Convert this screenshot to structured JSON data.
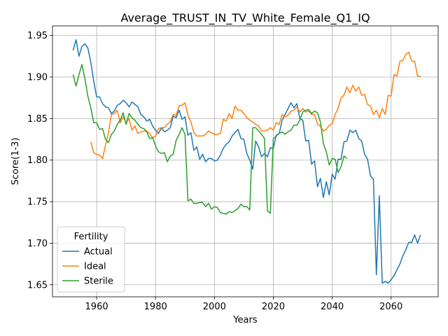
{
  "chart_data": {
    "type": "line",
    "title": "Average_TRUST_IN_TV_White_Female_Q1_IQ",
    "xlabel": "Years",
    "ylabel": "Score(1-3)",
    "xlim": [
      1945,
      2076
    ],
    "ylim": [
      1.6355,
      1.9615
    ],
    "xticks": [
      1960,
      1980,
      2000,
      2020,
      2040,
      2060
    ],
    "yticks": [
      1.65,
      1.7,
      1.75,
      1.8,
      1.85,
      1.9,
      1.95
    ],
    "ytick_labels": [
      "1.65",
      "1.70",
      "1.75",
      "1.80",
      "1.85",
      "1.90",
      "1.95"
    ],
    "grid": true,
    "legend": {
      "title": "Fertility",
      "placement": "lower-left"
    },
    "series": [
      {
        "name": "Actual",
        "color": "#1f77b4",
        "x": [
          1952,
          1953,
          1954,
          1955,
          1956,
          1957,
          1958,
          1959,
          1960,
          1961,
          1962,
          1963,
          1964,
          1965,
          1966,
          1967,
          1968,
          1969,
          1970,
          1971,
          1972,
          1973,
          1974,
          1975,
          1976,
          1977,
          1978,
          1979,
          1980,
          1981,
          1982,
          1983,
          1984,
          1985,
          1986,
          1987,
          1988,
          1989,
          1990,
          1991,
          1992,
          1993,
          1994,
          1995,
          1996,
          1997,
          1998,
          1999,
          2000,
          2001,
          2002,
          2003,
          2004,
          2005,
          2006,
          2007,
          2008,
          2009,
          2010,
          2011,
          2012,
          2013,
          2014,
          2015,
          2016,
          2017,
          2018,
          2019,
          2020,
          2021,
          2022,
          2023,
          2024,
          2025,
          2026,
          2027,
          2028,
          2029,
          2030,
          2031,
          2032,
          2033,
          2034,
          2035,
          2036,
          2037,
          2038,
          2039,
          2040,
          2041,
          2042,
          2043,
          2044,
          2045,
          2046,
          2047,
          2048,
          2049,
          2050,
          2051,
          2052,
          2053,
          2054,
          2055,
          2056,
          2057,
          2058,
          2059,
          2060,
          2061,
          2062,
          2063,
          2064,
          2065,
          2066,
          2067,
          2068,
          2069,
          2070
        ],
        "y": [
          1.932,
          1.945,
          1.925,
          1.937,
          1.94,
          1.935,
          1.918,
          1.895,
          1.876,
          1.876,
          1.868,
          1.864,
          1.863,
          1.856,
          1.859,
          1.866,
          1.868,
          1.872,
          1.869,
          1.864,
          1.87,
          1.867,
          1.864,
          1.855,
          1.852,
          1.847,
          1.849,
          1.841,
          1.836,
          1.832,
          1.839,
          1.834,
          1.836,
          1.839,
          1.853,
          1.851,
          1.86,
          1.849,
          1.852,
          1.83,
          1.833,
          1.812,
          1.816,
          1.801,
          1.807,
          1.798,
          1.802,
          1.802,
          1.799,
          1.8,
          1.806,
          1.814,
          1.819,
          1.822,
          1.829,
          1.833,
          1.837,
          1.826,
          1.825,
          1.808,
          1.8,
          1.789,
          1.823,
          1.816,
          1.804,
          1.808,
          1.804,
          1.815,
          1.814,
          1.83,
          1.832,
          1.848,
          1.855,
          1.862,
          1.869,
          1.863,
          1.868,
          1.85,
          1.848,
          1.823,
          1.824,
          1.795,
          1.799,
          1.768,
          1.778,
          1.755,
          1.774,
          1.758,
          1.783,
          1.777,
          1.801,
          1.801,
          1.822,
          1.823,
          1.836,
          1.833,
          1.836,
          1.826,
          1.823,
          1.807,
          1.801,
          1.781,
          1.777,
          1.662,
          1.757,
          1.652,
          1.654,
          1.652,
          1.656,
          1.661,
          1.668,
          1.675,
          1.685,
          1.692,
          1.701,
          1.701,
          1.71,
          1.7,
          1.71
        ]
      },
      {
        "name": "Ideal",
        "color": "#ff7f0e",
        "x": [
          1958,
          1959,
          1960,
          1961,
          1962,
          1963,
          1964,
          1965,
          1966,
          1967,
          1968,
          1969,
          1970,
          1971,
          1972,
          1973,
          1974,
          1975,
          1976,
          1977,
          1978,
          1979,
          1980,
          1981,
          1982,
          1983,
          1984,
          1985,
          1986,
          1987,
          1988,
          1989,
          1990,
          1991,
          1992,
          1993,
          1994,
          1995,
          1996,
          1997,
          1998,
          1999,
          2000,
          2001,
          2002,
          2003,
          2004,
          2005,
          2006,
          2007,
          2008,
          2009,
          2010,
          2011,
          2012,
          2013,
          2014,
          2015,
          2016,
          2017,
          2018,
          2019,
          2020,
          2021,
          2022,
          2023,
          2024,
          2025,
          2026,
          2027,
          2028,
          2029,
          2030,
          2031,
          2032,
          2033,
          2034,
          2035,
          2036,
          2037,
          2038,
          2039,
          2040,
          2041,
          2042,
          2043,
          2044,
          2045,
          2046,
          2047,
          2048,
          2049,
          2050,
          2051,
          2052,
          2053,
          2054,
          2055,
          2056,
          2057,
          2058,
          2059,
          2060,
          2061,
          2062,
          2063,
          2064,
          2065,
          2066,
          2067,
          2068,
          2069,
          2070
        ],
        "y": [
          1.822,
          1.809,
          1.807,
          1.806,
          1.802,
          1.818,
          1.833,
          1.855,
          1.856,
          1.86,
          1.845,
          1.852,
          1.845,
          1.85,
          1.836,
          1.841,
          1.832,
          1.834,
          1.835,
          1.835,
          1.832,
          1.827,
          1.829,
          1.838,
          1.839,
          1.839,
          1.843,
          1.846,
          1.855,
          1.854,
          1.865,
          1.866,
          1.869,
          1.854,
          1.846,
          1.833,
          1.829,
          1.829,
          1.829,
          1.831,
          1.835,
          1.833,
          1.831,
          1.831,
          1.832,
          1.849,
          1.847,
          1.856,
          1.85,
          1.865,
          1.86,
          1.86,
          1.856,
          1.851,
          1.848,
          1.846,
          1.843,
          1.841,
          1.835,
          1.835,
          1.836,
          1.839,
          1.836,
          1.845,
          1.843,
          1.855,
          1.852,
          1.854,
          1.859,
          1.86,
          1.864,
          1.858,
          1.862,
          1.858,
          1.859,
          1.855,
          1.855,
          1.843,
          1.841,
          1.835,
          1.837,
          1.842,
          1.844,
          1.855,
          1.862,
          1.875,
          1.878,
          1.888,
          1.881,
          1.89,
          1.883,
          1.888,
          1.878,
          1.879,
          1.867,
          1.865,
          1.855,
          1.86,
          1.851,
          1.862,
          1.855,
          1.878,
          1.877,
          1.903,
          1.901,
          1.919,
          1.92,
          1.927,
          1.93,
          1.919,
          1.919,
          1.901,
          1.901
        ]
      },
      {
        "name": "Sterile",
        "color": "#2ca02c",
        "x": [
          1952,
          1953,
          1954,
          1955,
          1956,
          1957,
          1958,
          1959,
          1960,
          1961,
          1962,
          1963,
          1964,
          1965,
          1966,
          1967,
          1968,
          1969,
          1970,
          1971,
          1972,
          1973,
          1974,
          1975,
          1976,
          1977,
          1978,
          1979,
          1980,
          1981,
          1982,
          1983,
          1984,
          1985,
          1986,
          1987,
          1988,
          1989,
          1990,
          1991,
          1992,
          1993,
          1994,
          1995,
          1996,
          1997,
          1998,
          1999,
          2000,
          2001,
          2002,
          2003,
          2004,
          2005,
          2006,
          2007,
          2008,
          2009,
          2010,
          2011,
          2012,
          2013,
          2014,
          2015,
          2016,
          2017,
          2018,
          2019,
          2020,
          2021,
          2022,
          2023,
          2024,
          2025,
          2026,
          2027,
          2028,
          2029,
          2030,
          2031,
          2032,
          2033,
          2034,
          2035,
          2036,
          2037,
          2038,
          2039,
          2040,
          2041,
          2042,
          2043,
          2044,
          2045
        ],
        "y": [
          1.903,
          1.889,
          1.903,
          1.915,
          1.898,
          1.877,
          1.863,
          1.845,
          1.845,
          1.837,
          1.838,
          1.825,
          1.821,
          1.831,
          1.835,
          1.843,
          1.848,
          1.857,
          1.843,
          1.856,
          1.851,
          1.848,
          1.843,
          1.839,
          1.838,
          1.834,
          1.826,
          1.827,
          1.817,
          1.81,
          1.808,
          1.809,
          1.798,
          1.805,
          1.807,
          1.824,
          1.831,
          1.839,
          1.831,
          1.751,
          1.753,
          1.748,
          1.748,
          1.749,
          1.749,
          1.744,
          1.748,
          1.741,
          1.744,
          1.743,
          1.737,
          1.736,
          1.735,
          1.738,
          1.737,
          1.739,
          1.742,
          1.747,
          1.744,
          1.744,
          1.74,
          1.839,
          1.839,
          1.835,
          1.831,
          1.826,
          1.739,
          1.736,
          1.826,
          1.829,
          1.832,
          1.834,
          1.831,
          1.834,
          1.836,
          1.842,
          1.842,
          1.848,
          1.858,
          1.86,
          1.861,
          1.856,
          1.859,
          1.857,
          1.846,
          1.82,
          1.81,
          1.794,
          1.802,
          1.801,
          1.785,
          1.792,
          1.805,
          1.802
        ]
      }
    ]
  }
}
